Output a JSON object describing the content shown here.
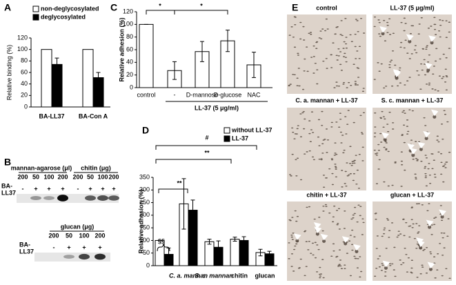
{
  "chart_data": [
    {
      "type": "bar",
      "panel": "A",
      "ylabel": "Relative binding (%)",
      "categories": [
        "BA-LL37",
        "BA-Con A"
      ],
      "series": [
        {
          "name": "non-deglycosylated",
          "color": "#ffffff",
          "values": [
            100,
            100
          ]
        },
        {
          "name": "deglycosylated",
          "color": "#000000",
          "values": [
            74,
            51
          ],
          "errors": [
            11,
            9
          ]
        }
      ],
      "ylim": [
        0,
        120
      ],
      "yticks": [
        0,
        20,
        40,
        60,
        80,
        100,
        120
      ]
    },
    {
      "type": "bar",
      "panel": "C",
      "ylabel": "Relative adhesion (%)",
      "categories": [
        "control",
        "-",
        "D-mannose",
        "D-glucose",
        "NAC"
      ],
      "series": [
        {
          "color": "#ffffff",
          "values": [
            100,
            27,
            57,
            74,
            36
          ],
          "errors": [
            0,
            14,
            16,
            17,
            20
          ]
        }
      ],
      "group_label": "LL-37 (5 μg/ml)",
      "annotations": [
        "*",
        "*"
      ],
      "ylim": [
        0,
        120
      ],
      "yticks": [
        0,
        20,
        40,
        60,
        80,
        100,
        120
      ]
    },
    {
      "type": "bar",
      "panel": "D",
      "ylabel": "Relative adhesion (%)",
      "categories": [
        null,
        "C. a. mannan",
        "S. c. mannan",
        "chitin",
        "glucan"
      ],
      "series": [
        {
          "name": "without LL-37",
          "color": "#ffffff",
          "values": [
            100,
            245,
            95,
            105,
            52
          ],
          "errors": [
            0,
            100,
            10,
            8,
            13
          ]
        },
        {
          "name": "LL-37",
          "color": "#000000",
          "values": [
            45,
            220,
            73,
            100,
            47
          ],
          "errors": [
            25,
            40,
            25,
            15,
            10
          ]
        }
      ],
      "annotations": [
        "§§",
        "**",
        "**",
        "#"
      ],
      "ylim": [
        0,
        350
      ],
      "yticks": [
        0,
        50,
        100,
        150,
        200,
        250,
        300,
        350
      ]
    }
  ],
  "blots": {
    "panel": "B",
    "row_label": [
      "BA-",
      "LL37"
    ],
    "top": {
      "groups": [
        {
          "label": "mannan-agarose (μl)",
          "amounts": [
            "200",
            "50",
            "100",
            "200"
          ]
        },
        {
          "label": "chitin (μg)",
          "amounts": [
            "200",
            "50",
            "100",
            "200"
          ]
        }
      ],
      "signs": [
        "-",
        "+",
        "+",
        "+",
        "-",
        "+",
        "+",
        "+"
      ]
    },
    "bottom": {
      "groups": [
        {
          "label": "glucan (μg)",
          "amounts": [
            "200",
            "50",
            "100",
            "200"
          ]
        }
      ],
      "signs": [
        "-",
        "+",
        "+",
        "+"
      ]
    }
  },
  "micrographs": {
    "panel": "E",
    "labels": [
      "control",
      "LL-37 (5 μg/ml)",
      "C. a. mannan + LL-37",
      "S. c. mannan + LL-37",
      "chitin + LL-37",
      "glucan + LL-37"
    ]
  }
}
